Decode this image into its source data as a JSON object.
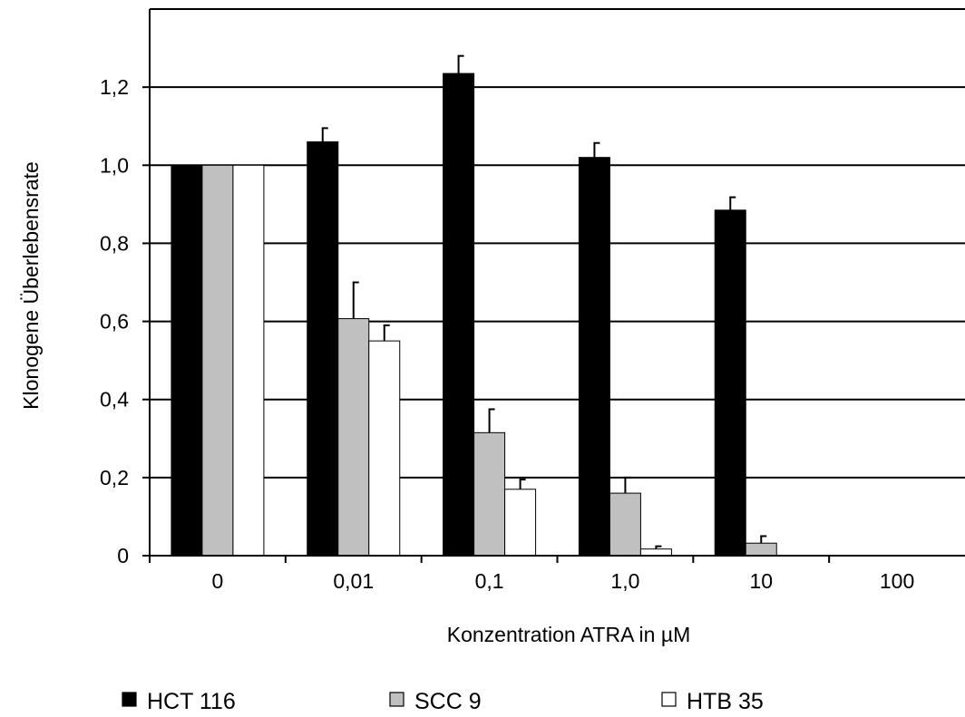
{
  "chart_data": {
    "type": "bar",
    "title": "",
    "xlabel": "Konzentration ATRA in µM",
    "ylabel": "Klonogene Überlebensrate",
    "categories": [
      "0",
      "0,01",
      "0,1",
      "1,0",
      "10",
      "100"
    ],
    "ylim": [
      0,
      1.4
    ],
    "yticks": [
      0,
      0.2,
      0.4,
      0.6,
      0.8,
      1.0,
      1.2
    ],
    "ytick_labels": [
      "0",
      "0,2",
      "0,4",
      "0,6",
      "0,8",
      "1,0",
      "1,2"
    ],
    "grid": true,
    "legend_position": "bottom",
    "series": [
      {
        "name": "HCT 116",
        "color": "#000000",
        "values": [
          1.0,
          1.06,
          1.235,
          1.02,
          0.885,
          0
        ],
        "errors": [
          0,
          0.035,
          0.045,
          0.037,
          0.033,
          0
        ]
      },
      {
        "name": "SCC 9",
        "color": "#c0c0c0",
        "values": [
          1.0,
          0.607,
          0.315,
          0.16,
          0.032,
          0
        ],
        "errors": [
          0,
          0.093,
          0.06,
          0.04,
          0.018,
          0
        ]
      },
      {
        "name": "HTB 35",
        "color": "#ffffff",
        "values": [
          1.0,
          0.55,
          0.17,
          0.017,
          0,
          0
        ],
        "errors": [
          0,
          0.04,
          0.025,
          0.007,
          0,
          0
        ]
      }
    ]
  }
}
